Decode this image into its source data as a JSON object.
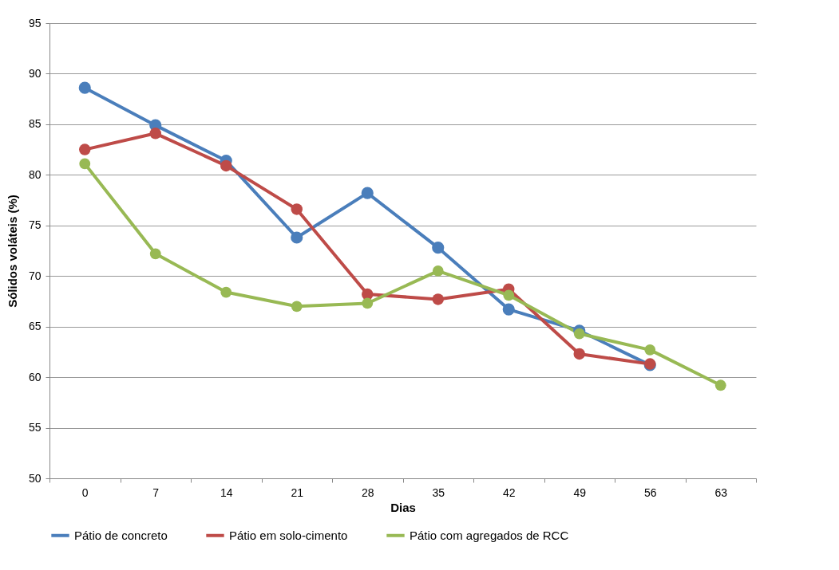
{
  "chart_data": {
    "type": "line",
    "xlabel": "Dias",
    "ylabel": "Sólidos voláteis (%)",
    "categories": [
      "0",
      "7",
      "14",
      "21",
      "28",
      "35",
      "42",
      "49",
      "56",
      "63"
    ],
    "series": [
      {
        "name": "Pátio de concreto",
        "color": "#4a7ebb",
        "values": [
          88.6,
          84.9,
          81.4,
          73.8,
          78.2,
          72.8,
          66.7,
          64.6,
          61.2,
          null
        ]
      },
      {
        "name": "Pátio em solo-cimento",
        "color": "#be4b48",
        "values": [
          82.5,
          84.1,
          80.9,
          76.6,
          68.2,
          67.7,
          68.7,
          62.3,
          61.3,
          null
        ]
      },
      {
        "name": "Pátio com agregados de RCC",
        "color": "#98b954",
        "values": [
          81.1,
          72.2,
          68.4,
          67.0,
          67.3,
          70.5,
          68.1,
          64.3,
          62.7,
          59.2
        ]
      }
    ],
    "ylim": [
      50,
      95
    ],
    "yticks": [
      50,
      55,
      60,
      65,
      70,
      75,
      80,
      85,
      90,
      95
    ],
    "grid": "y",
    "legend": "bottom",
    "marker": "circle",
    "line_style": "solid"
  }
}
